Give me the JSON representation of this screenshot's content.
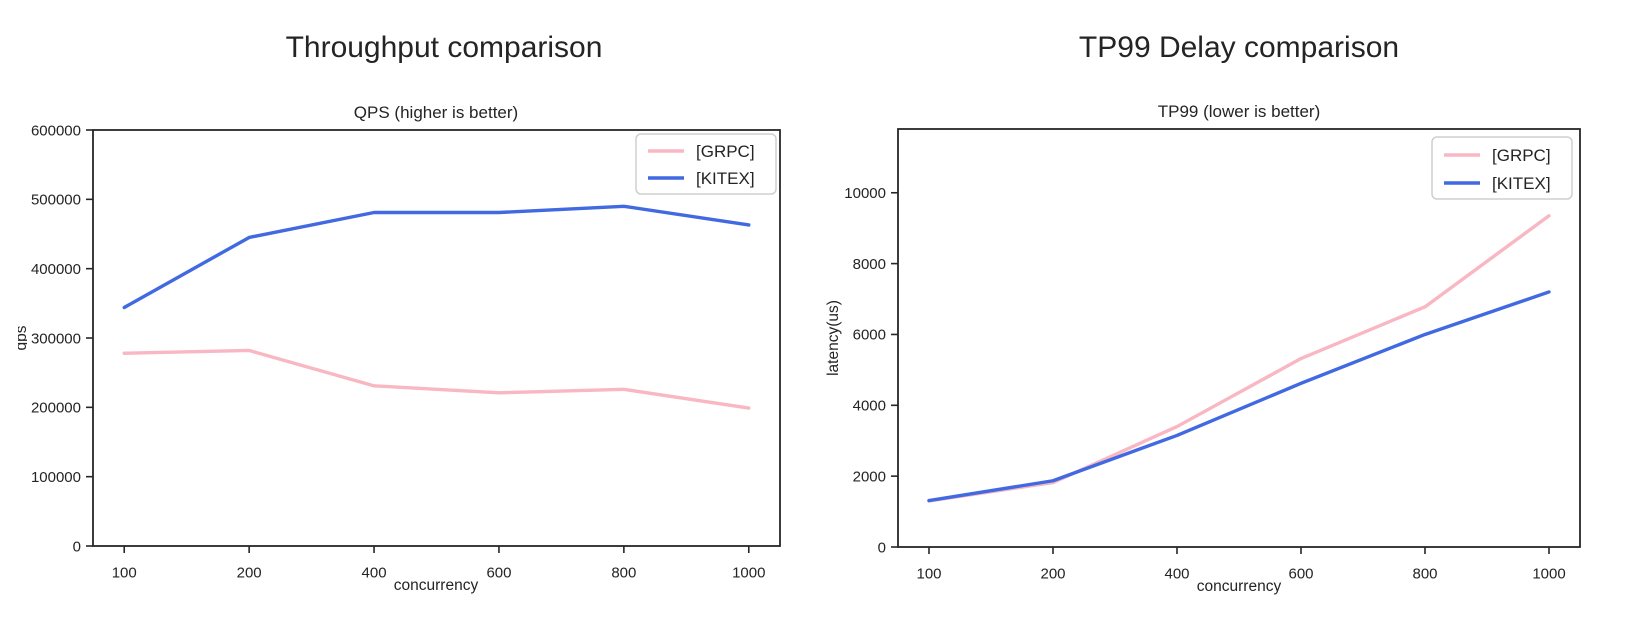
{
  "page": {
    "background": "#ffffff",
    "text_color": "#242424",
    "axis_color": "#262626"
  },
  "chart_data": [
    {
      "type": "line",
      "suptitle": "Throughput comparison",
      "title": "QPS (higher is better)",
      "xlabel": "concurrency",
      "ylabel": "qps",
      "ylabel_clipped": true,
      "x_categories": [
        "100",
        "200",
        "400",
        "600",
        "800",
        "1000"
      ],
      "series": [
        {
          "name": "[GRPC]",
          "color": "#f8b7c3",
          "values": [
            278000,
            282000,
            231000,
            221000,
            226000,
            199000
          ]
        },
        {
          "name": "[KITEX]",
          "color": "#4169e1",
          "values": [
            344000,
            445000,
            481000,
            481000,
            490000,
            463000
          ]
        }
      ],
      "ylim": [
        0,
        600000
      ],
      "yticks": [
        0,
        100000,
        200000,
        300000,
        400000,
        500000,
        600000
      ],
      "legend_position": "upper right",
      "grid": false
    },
    {
      "type": "line",
      "suptitle": "TP99 Delay comparison",
      "title": "TP99 (lower is better)",
      "xlabel": "concurrency",
      "ylabel": "latency(us)",
      "ylabel_clipped": false,
      "x_categories": [
        "100",
        "200",
        "400",
        "600",
        "800",
        "1000"
      ],
      "series": [
        {
          "name": "[GRPC]",
          "color": "#f8b7c3",
          "values": [
            1300,
            1820,
            3400,
            5320,
            6780,
            9350
          ]
        },
        {
          "name": "[KITEX]",
          "color": "#4169e1",
          "values": [
            1310,
            1870,
            3150,
            4620,
            6000,
            7200
          ]
        }
      ],
      "ylim": [
        0,
        11800
      ],
      "yticks": [
        0,
        2000,
        4000,
        6000,
        8000,
        10000
      ],
      "legend_position": "upper right",
      "grid": false
    }
  ]
}
